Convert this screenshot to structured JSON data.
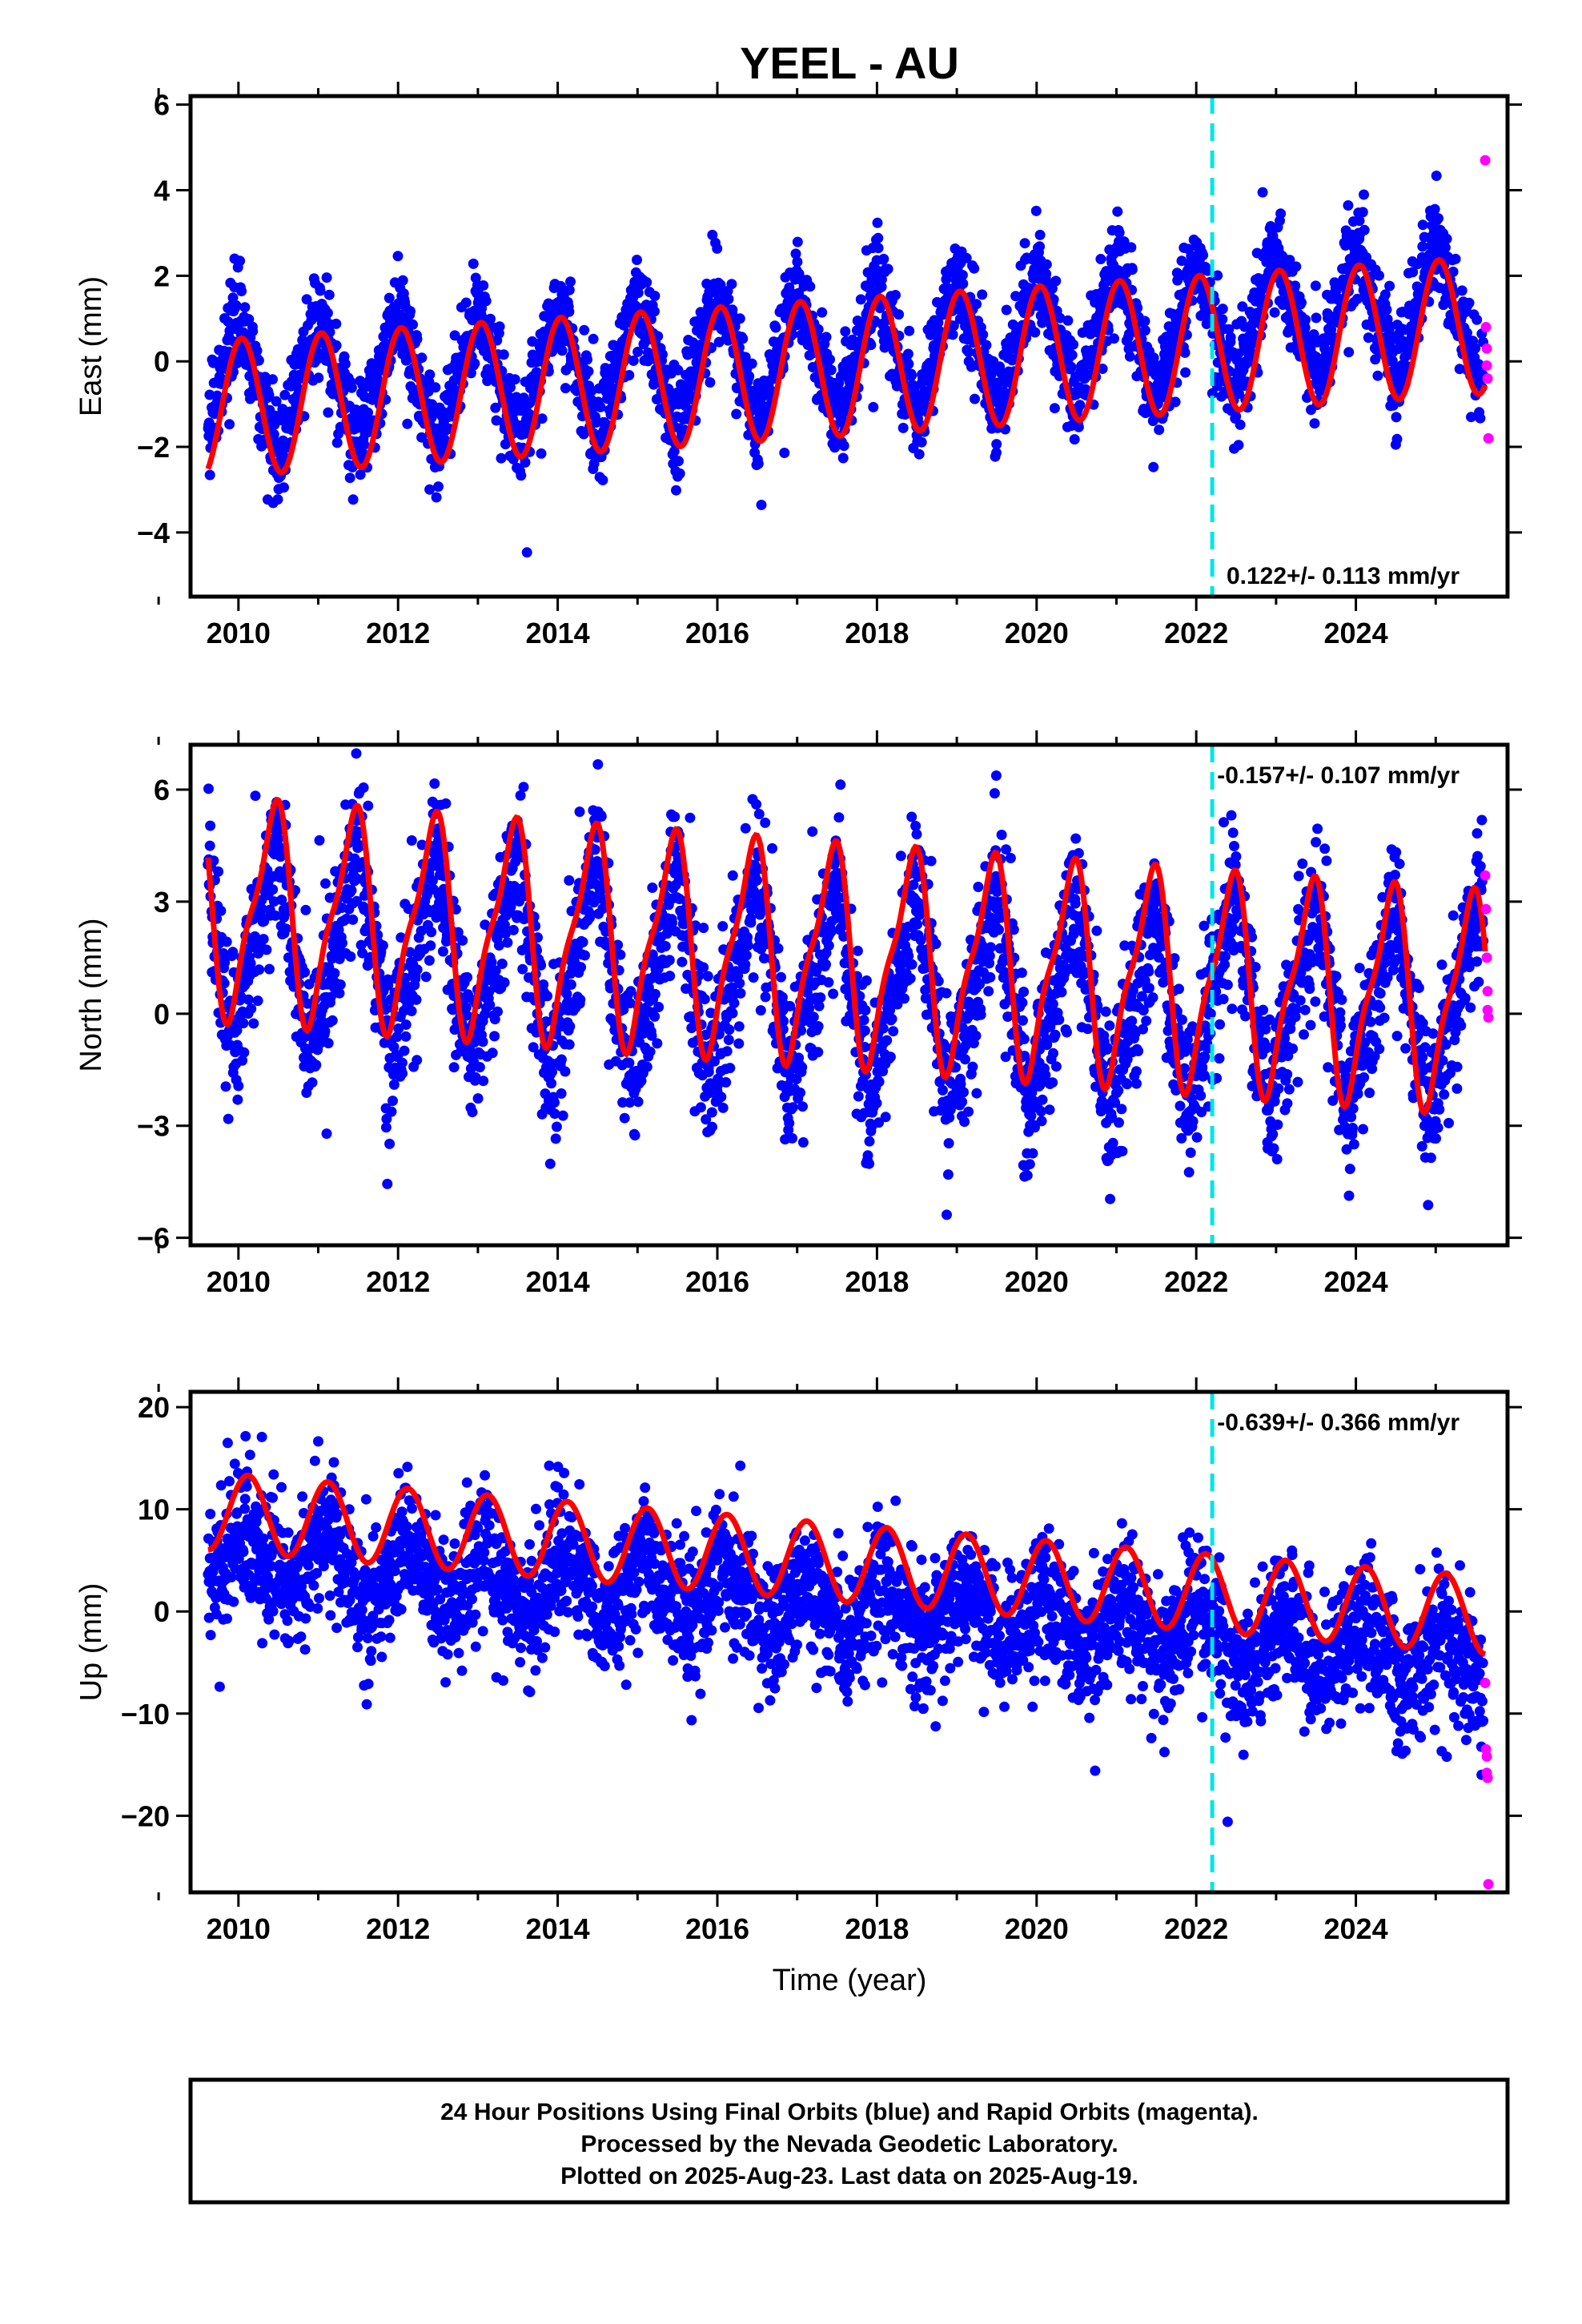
{
  "title": "YEEL - AU",
  "x_axis_label": "Time (year)",
  "caption": {
    "line1": "24 Hour Positions Using Final Orbits (blue) and Rapid Orbits (magenta).",
    "line2": "Processed by the Nevada Geodetic Laboratory.",
    "line3": "Plotted on 2025-Aug-23. Last data on 2025-Aug-19."
  },
  "colors": {
    "final_points": "#0000ff",
    "rapid_points": "#ff00ff",
    "model_fit": "#ff0000",
    "event_line": "#00e5e5",
    "frame": "#000000"
  },
  "chart_data": [
    {
      "type": "scatter",
      "component": "East",
      "ylabel": "East (mm)",
      "xlim": [
        2009.4,
        2025.9
      ],
      "ylim": [
        -5.5,
        6.2
      ],
      "x_ticks": [
        "2010",
        "2012",
        "2014",
        "2016",
        "2018",
        "2020",
        "2022",
        "2024"
      ],
      "y_ticks": [
        "−4",
        "−2",
        "0",
        "2",
        "4",
        "6"
      ],
      "y_tick_values": [
        -4,
        -2,
        0,
        2,
        4,
        6
      ],
      "rate_text": "0.122+/- 0.113 mm/yr",
      "rate_position": "bottom-right",
      "event_line_x": 2022.2,
      "series": [
        {
          "kind": "final",
          "samples": [
            [
              2009.6,
              -1.7
            ],
            [
              2010.0,
              0.9
            ],
            [
              2010.5,
              -2.2
            ],
            [
              2011.0,
              1.1
            ],
            [
              2011.5,
              -2.0
            ],
            [
              2012.0,
              1.2
            ],
            [
              2012.5,
              -2.0
            ],
            [
              2013.0,
              1.3
            ],
            [
              2013.5,
              -1.9
            ],
            [
              2014.0,
              1.4
            ],
            [
              2014.5,
              -1.8
            ],
            [
              2015.0,
              1.5
            ],
            [
              2015.5,
              -1.6
            ],
            [
              2016.0,
              1.7
            ],
            [
              2016.5,
              -1.5
            ],
            [
              2017.0,
              1.8
            ],
            [
              2017.5,
              -1.4
            ],
            [
              2018.0,
              1.9
            ],
            [
              2018.5,
              -1.3
            ],
            [
              2019.0,
              2.0
            ],
            [
              2019.5,
              -1.1
            ],
            [
              2020.0,
              2.2
            ],
            [
              2020.5,
              -1.0
            ],
            [
              2021.0,
              2.3
            ],
            [
              2021.5,
              -0.9
            ],
            [
              2022.0,
              2.4
            ],
            [
              2022.5,
              -0.7
            ],
            [
              2023.0,
              2.6
            ],
            [
              2023.5,
              -0.5
            ],
            [
              2024.0,
              2.8
            ],
            [
              2024.5,
              -0.4
            ],
            [
              2025.0,
              2.9
            ],
            [
              2025.5,
              -0.3
            ]
          ]
        },
        {
          "kind": "rapid",
          "points": [
            [
              2025.62,
              4.7
            ],
            [
              2025.63,
              0.8
            ],
            [
              2025.64,
              0.3
            ],
            [
              2025.64,
              -0.1
            ],
            [
              2025.65,
              -0.4
            ],
            [
              2025.66,
              -1.8
            ]
          ]
        }
      ],
      "model": {
        "offset": -0.15,
        "rate": 0.122,
        "annual_amp": 1.6,
        "annual_phase_yr": 0.04,
        "semi_amp": 0.0,
        "semi_phase_yr": 0.0
      }
    },
    {
      "type": "scatter",
      "component": "North",
      "ylabel": "North (mm)",
      "xlim": [
        2009.4,
        2025.9
      ],
      "ylim": [
        -6.2,
        7.2
      ],
      "x_ticks": [
        "2010",
        "2012",
        "2014",
        "2016",
        "2018",
        "2020",
        "2022",
        "2024"
      ],
      "y_ticks": [
        "−6",
        "−3",
        "0",
        "3",
        "6"
      ],
      "y_tick_values": [
        -6,
        -3,
        0,
        3,
        6
      ],
      "rate_text": "-0.157+/- 0.107 mm/yr",
      "rate_position": "top-right",
      "event_line_x": 2022.2,
      "series": [
        {
          "kind": "final",
          "samples": [
            [
              2009.6,
              4.2
            ],
            [
              2009.9,
              -0.9
            ],
            [
              2010.5,
              4.7
            ],
            [
              2010.9,
              -1.0
            ],
            [
              2011.5,
              4.6
            ],
            [
              2011.9,
              -1.2
            ],
            [
              2012.5,
              4.4
            ],
            [
              2012.9,
              -1.4
            ],
            [
              2013.5,
              4.2
            ],
            [
              2013.9,
              -1.6
            ],
            [
              2014.5,
              4.0
            ],
            [
              2014.9,
              -1.7
            ],
            [
              2015.5,
              3.9
            ],
            [
              2015.9,
              -1.9
            ],
            [
              2016.5,
              3.7
            ],
            [
              2016.9,
              -2.0
            ],
            [
              2017.5,
              3.6
            ],
            [
              2017.9,
              -2.2
            ],
            [
              2018.5,
              3.4
            ],
            [
              2018.9,
              -2.3
            ],
            [
              2019.5,
              3.3
            ],
            [
              2019.9,
              -2.5
            ],
            [
              2020.5,
              3.1
            ],
            [
              2020.9,
              -2.6
            ],
            [
              2021.5,
              3.0
            ],
            [
              2021.9,
              -2.7
            ],
            [
              2022.5,
              3.3
            ],
            [
              2022.9,
              -2.5
            ],
            [
              2023.5,
              3.1
            ],
            [
              2023.9,
              -2.6
            ],
            [
              2024.5,
              3.0
            ],
            [
              2024.9,
              -2.8
            ],
            [
              2025.5,
              2.8
            ]
          ]
        },
        {
          "kind": "rapid",
          "points": [
            [
              2025.62,
              3.7
            ],
            [
              2025.63,
              2.8
            ],
            [
              2025.64,
              1.5
            ],
            [
              2025.65,
              0.6
            ],
            [
              2025.65,
              0.1
            ],
            [
              2025.66,
              -0.1
            ]
          ]
        }
      ],
      "model": {
        "offset": 1.6,
        "rate": -0.157,
        "annual_amp": 2.7,
        "annual_phase_yr": 0.42,
        "semi_amp": 0.8,
        "semi_phase_yr": 0.05
      }
    },
    {
      "type": "scatter",
      "component": "Up",
      "ylabel": "Up (mm)",
      "xlim": [
        2009.4,
        2025.9
      ],
      "ylim": [
        -27.5,
        21.5
      ],
      "x_ticks": [
        "2010",
        "2012",
        "2014",
        "2016",
        "2018",
        "2020",
        "2022",
        "2024"
      ],
      "y_ticks": [
        "−20",
        "−10",
        "0",
        "10",
        "20"
      ],
      "y_tick_values": [
        -20,
        -10,
        0,
        10,
        20
      ],
      "rate_text": "-0.639+/- 0.366 mm/yr",
      "rate_position": "top-right",
      "event_line_x": 2022.2,
      "series": [
        {
          "kind": "final",
          "samples": [
            [
              2009.6,
              2.0
            ],
            [
              2010.1,
              8.5
            ],
            [
              2010.6,
              1.3
            ],
            [
              2011.1,
              7.8
            ],
            [
              2011.6,
              0.8
            ],
            [
              2012.1,
              7.2
            ],
            [
              2012.6,
              0.3
            ],
            [
              2013.1,
              6.5
            ],
            [
              2013.6,
              -0.4
            ],
            [
              2014.1,
              6.0
            ],
            [
              2014.6,
              -1.0
            ],
            [
              2015.1,
              5.3
            ],
            [
              2015.6,
              -1.7
            ],
            [
              2016.1,
              4.6
            ],
            [
              2016.6,
              -2.2
            ],
            [
              2017.1,
              4.0
            ],
            [
              2017.6,
              -2.9
            ],
            [
              2018.1,
              3.4
            ],
            [
              2018.6,
              -3.5
            ],
            [
              2019.1,
              2.8
            ],
            [
              2019.6,
              -4.2
            ],
            [
              2020.1,
              2.2
            ],
            [
              2020.6,
              -4.8
            ],
            [
              2021.1,
              1.6
            ],
            [
              2021.6,
              -5.5
            ],
            [
              2022.0,
              0.9
            ],
            [
              2022.6,
              -6.5
            ],
            [
              2023.1,
              -0.2
            ],
            [
              2023.6,
              -7.0
            ],
            [
              2024.1,
              -0.8
            ],
            [
              2024.6,
              -7.8
            ],
            [
              2025.1,
              -1.3
            ],
            [
              2025.6,
              -8.5
            ]
          ]
        },
        {
          "kind": "rapid",
          "points": [
            [
              2025.62,
              -7.0
            ],
            [
              2025.63,
              -13.5
            ],
            [
              2025.64,
              -14.2
            ],
            [
              2025.64,
              -15.8
            ],
            [
              2025.65,
              -16.3
            ],
            [
              2025.66,
              -26.7
            ]
          ]
        }
      ],
      "model": {
        "offset": 4.8,
        "rate": -0.639,
        "annual_amp": 3.8,
        "annual_phase_yr": 0.12,
        "semi_amp": 0.0,
        "semi_phase_yr": 0.0
      }
    }
  ]
}
